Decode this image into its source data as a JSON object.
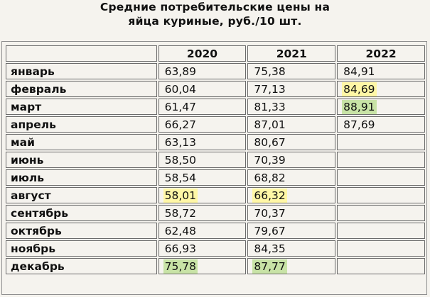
{
  "title": {
    "line1": "Средние потребительские цены на",
    "line2": "яйца куриные, руб./10 шт."
  },
  "table": {
    "headers": [
      "",
      "2020",
      "2021",
      "2022"
    ],
    "rows": [
      {
        "month": "январь",
        "v2020": "63,89",
        "v2021": "75,38",
        "v2022": "84,91"
      },
      {
        "month": "февраль",
        "v2020": "60,04",
        "v2021": "77,13",
        "v2022": "84,69"
      },
      {
        "month": "март",
        "v2020": "61,47",
        "v2021": "81,33",
        "v2022": "88,91"
      },
      {
        "month": "апрель",
        "v2020": "66,27",
        "v2021": "87,01",
        "v2022": "87,69"
      },
      {
        "month": "май",
        "v2020": "63,13",
        "v2021": "80,67",
        "v2022": ""
      },
      {
        "month": "июнь",
        "v2020": "58,50",
        "v2021": "70,39",
        "v2022": ""
      },
      {
        "month": "июль",
        "v2020": "58,54",
        "v2021": "68,82",
        "v2022": ""
      },
      {
        "month": "август",
        "v2020": "58,01",
        "v2021": "66,32",
        "v2022": ""
      },
      {
        "month": "сентябрь",
        "v2020": "58,72",
        "v2021": "70,37",
        "v2022": ""
      },
      {
        "month": "октябрь",
        "v2020": "62,48",
        "v2021": "79,67",
        "v2022": ""
      },
      {
        "month": "ноябрь",
        "v2020": "66,93",
        "v2021": "84,35",
        "v2022": ""
      },
      {
        "month": "декабрь",
        "v2020": "75,78",
        "v2021": "87,77",
        "v2022": ""
      }
    ]
  },
  "highlights": {
    "min_color": "#fff7a6",
    "max_color": "#c8e3a6",
    "min_cells": [
      "август-2020",
      "август-2021",
      "февраль-2022"
    ],
    "max_cells": [
      "декабрь-2020",
      "декабрь-2021",
      "март-2022"
    ]
  }
}
